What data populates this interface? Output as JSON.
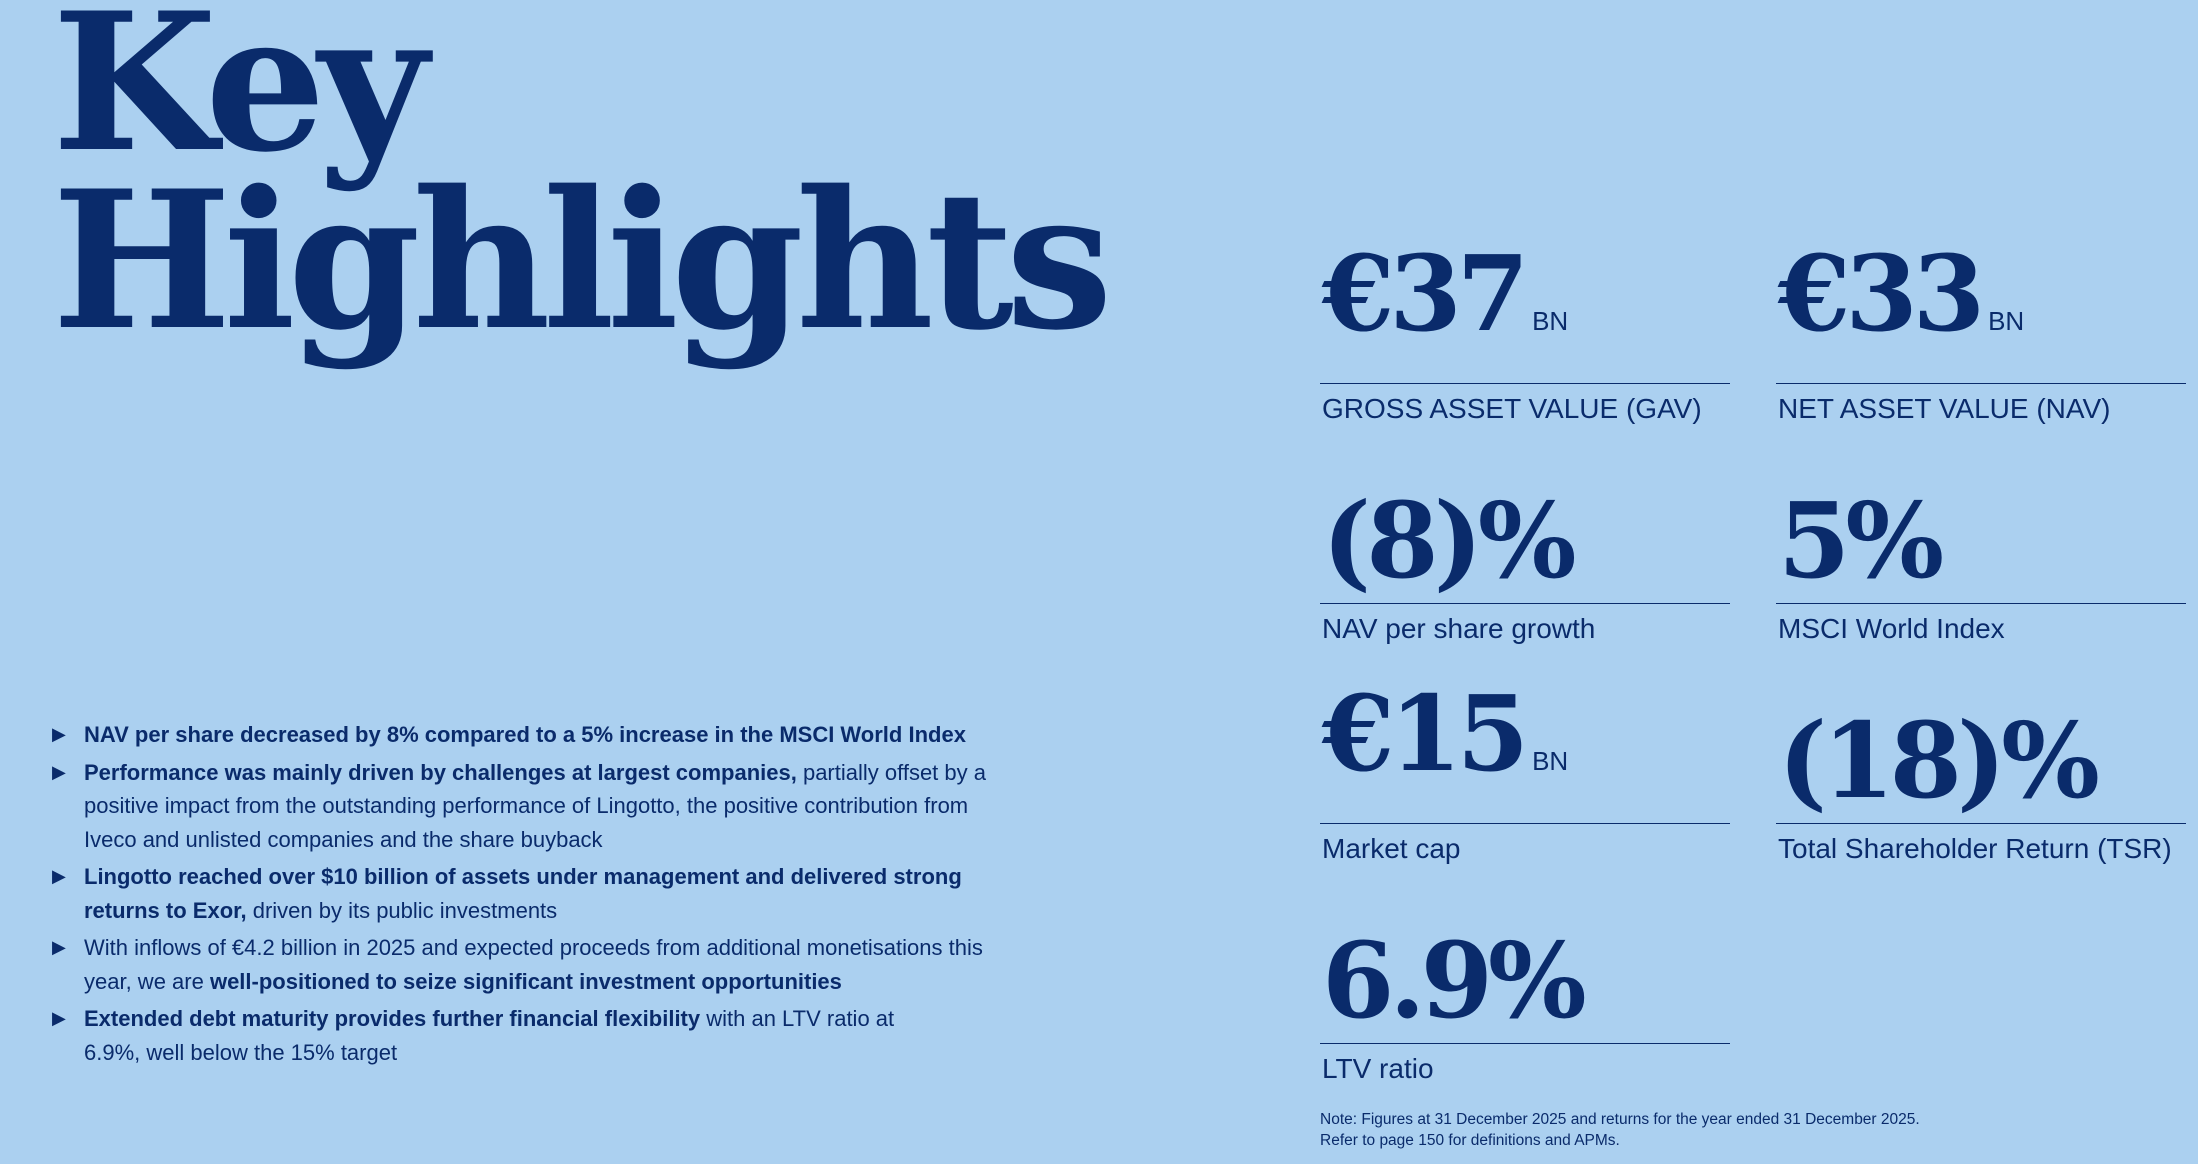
{
  "title": {
    "line1": "Key",
    "line2": "Highlights"
  },
  "metrics": [
    {
      "value": "€37",
      "unit": "BN",
      "label": "GROSS ASSET VALUE (GAV)"
    },
    {
      "value": "€33",
      "unit": "BN",
      "label": "NET ASSET VALUE (NAV)"
    },
    {
      "value": "(8)%",
      "unit": "",
      "label": "NAV per share growth"
    },
    {
      "value": "5%",
      "unit": "",
      "label": "MSCI World Index"
    },
    {
      "value": "€15",
      "unit": "BN",
      "label": "Market cap"
    },
    {
      "value": "(18)%",
      "unit": "",
      "label": "Total Shareholder Return (TSR)"
    },
    {
      "value": "6.9%",
      "unit": "",
      "label": "LTV ratio"
    }
  ],
  "bullets": [
    {
      "marker": "▶",
      "bold": "NAV per share decreased by 8% compared to a 5% increase in the MSCI World Index",
      "rest": ""
    },
    {
      "marker": "▶",
      "bold": "Performance was mainly driven by challenges at largest companies,",
      "rest": " partially offset by a positive impact from the outstanding performance of Lingotto, the positive contribution from Iveco and unlisted companies and the share buyback"
    },
    {
      "marker": "▶",
      "bold": "Lingotto reached over $10 billion of assets under management and delivered strong returns to Exor,",
      "rest": " driven by its public investments"
    },
    {
      "marker": "▶",
      "pre": "With inflows of €4.2 billion in 2025 and expected proceeds from additional monetisations this year, we are ",
      "bold": "well-positioned to seize significant investment opportunities",
      "rest": ""
    },
    {
      "marker": "▶",
      "bold": "Extended debt maturity provides further financial flexibility",
      "rest": " with an LTV ratio at 6.9%, well below the 15% target"
    }
  ],
  "note": {
    "line1": "Note: Figures at 31 December 2025 and returns for the year ended 31 December 2025.",
    "line2": "Refer to page 150 for definitions and APMs."
  }
}
